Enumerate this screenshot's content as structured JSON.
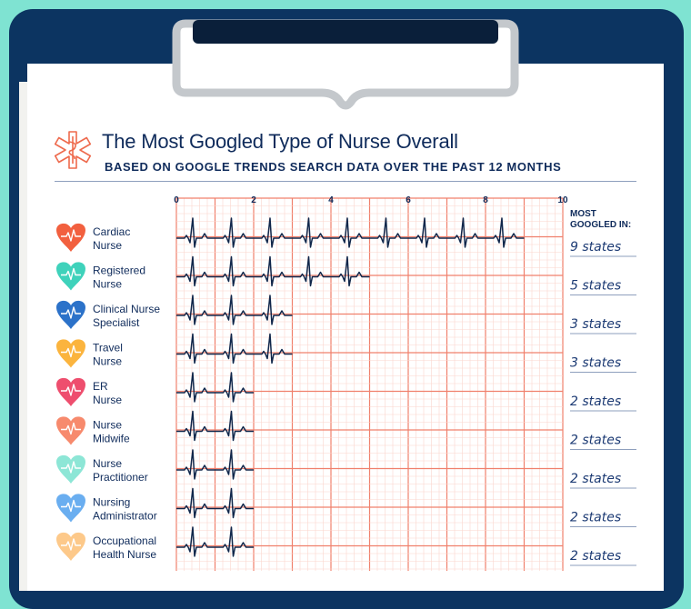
{
  "title": "The Most Googled Type of Nurse Overall",
  "subtitle": "BASED ON GOOGLE TRENDS SEARCH DATA OVER THE PAST 12 MONTHS",
  "value_header": [
    "MOST",
    "GOOGLED IN:"
  ],
  "colors": {
    "background": "#7fe3d2",
    "clipboard": "#0c3461",
    "grid_major": "#f0806c",
    "grid_minor": "#fbd6cd",
    "ecg_line": "#10264a",
    "icon": "#ee6a4d"
  },
  "chart_data": {
    "type": "bar",
    "title": "The Most Googled Type of Nurse Overall",
    "subtitle": "BASED ON GOOGLE TRENDS SEARCH DATA OVER THE PAST 12 MONTHS",
    "xlim": [
      0,
      10
    ],
    "ticks": [
      "0",
      "2",
      "4",
      "6",
      "8",
      "10"
    ],
    "grid": true,
    "orientation": "horizontal",
    "categories": [
      [
        "Cardiac",
        "Nurse"
      ],
      [
        "Registered",
        "Nurse"
      ],
      [
        "Clinical Nurse",
        "Specialist"
      ],
      [
        "Travel",
        "Nurse"
      ],
      [
        "ER",
        "Nurse"
      ],
      [
        "Nurse",
        "Midwife"
      ],
      [
        "Nurse",
        "Practitioner"
      ],
      [
        "Nursing",
        "Administrator"
      ],
      [
        "Occupational",
        "Health Nurse"
      ]
    ],
    "values": [
      9,
      5,
      3,
      3,
      2,
      2,
      2,
      2,
      2
    ],
    "value_labels": [
      "9 states",
      "5 states",
      "3 states",
      "3 states",
      "2 states",
      "2 states",
      "2 states",
      "2 states",
      "2 states"
    ],
    "heart_colors": [
      "#f2603f",
      "#3fd2bb",
      "#2c72c9",
      "#fbb43e",
      "#ee4e6e",
      "#f78a6d",
      "#8de6d6",
      "#6aaef0",
      "#fdc98a"
    ]
  }
}
